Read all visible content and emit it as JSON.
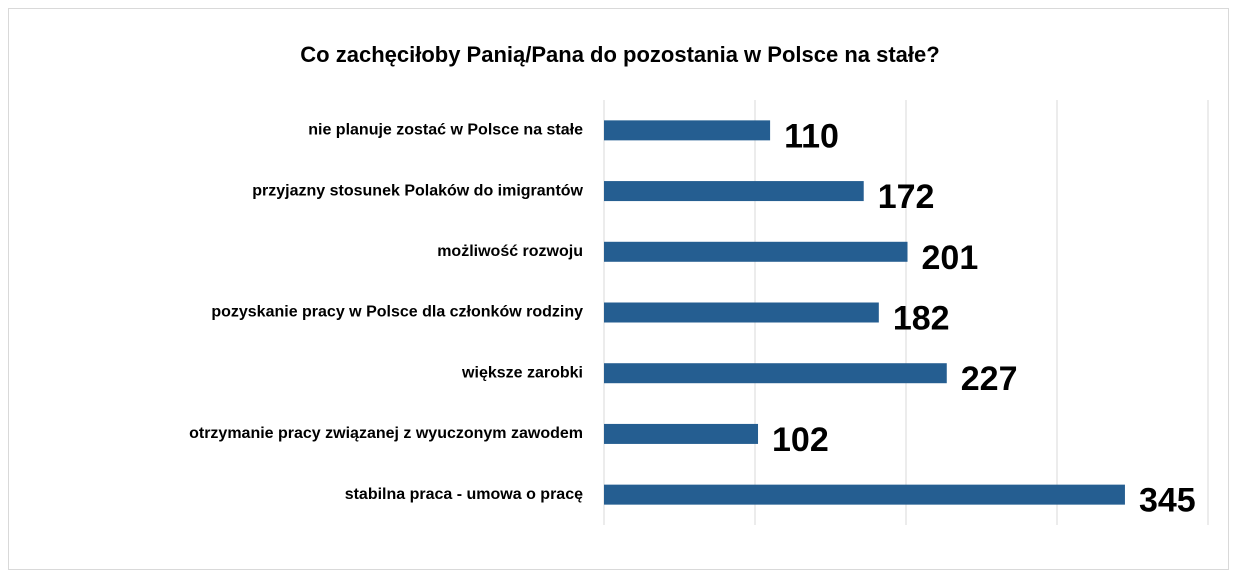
{
  "chart_data": {
    "type": "bar",
    "orientation": "horizontal",
    "title": "Co zachęciłoby Panią/Pana do pozostania w Polsce na stałe?",
    "categories": [
      "nie planuje zostać w Polsce na stałe",
      "przyjazny stosunek Polaków do imigrantów",
      "możliwość rozwoju",
      "pozyskanie pracy w Polsce dla członków rodziny",
      "większe zarobki",
      "otrzymanie pracy związanej z wyuczonym zawodem",
      "stabilna praca - umowa o pracę"
    ],
    "values": [
      110,
      172,
      201,
      182,
      227,
      102,
      345
    ],
    "color": "#255e91",
    "xlim": [
      0,
      400
    ],
    "xticks": [
      0,
      100,
      200,
      300,
      400
    ],
    "grid": true
  }
}
